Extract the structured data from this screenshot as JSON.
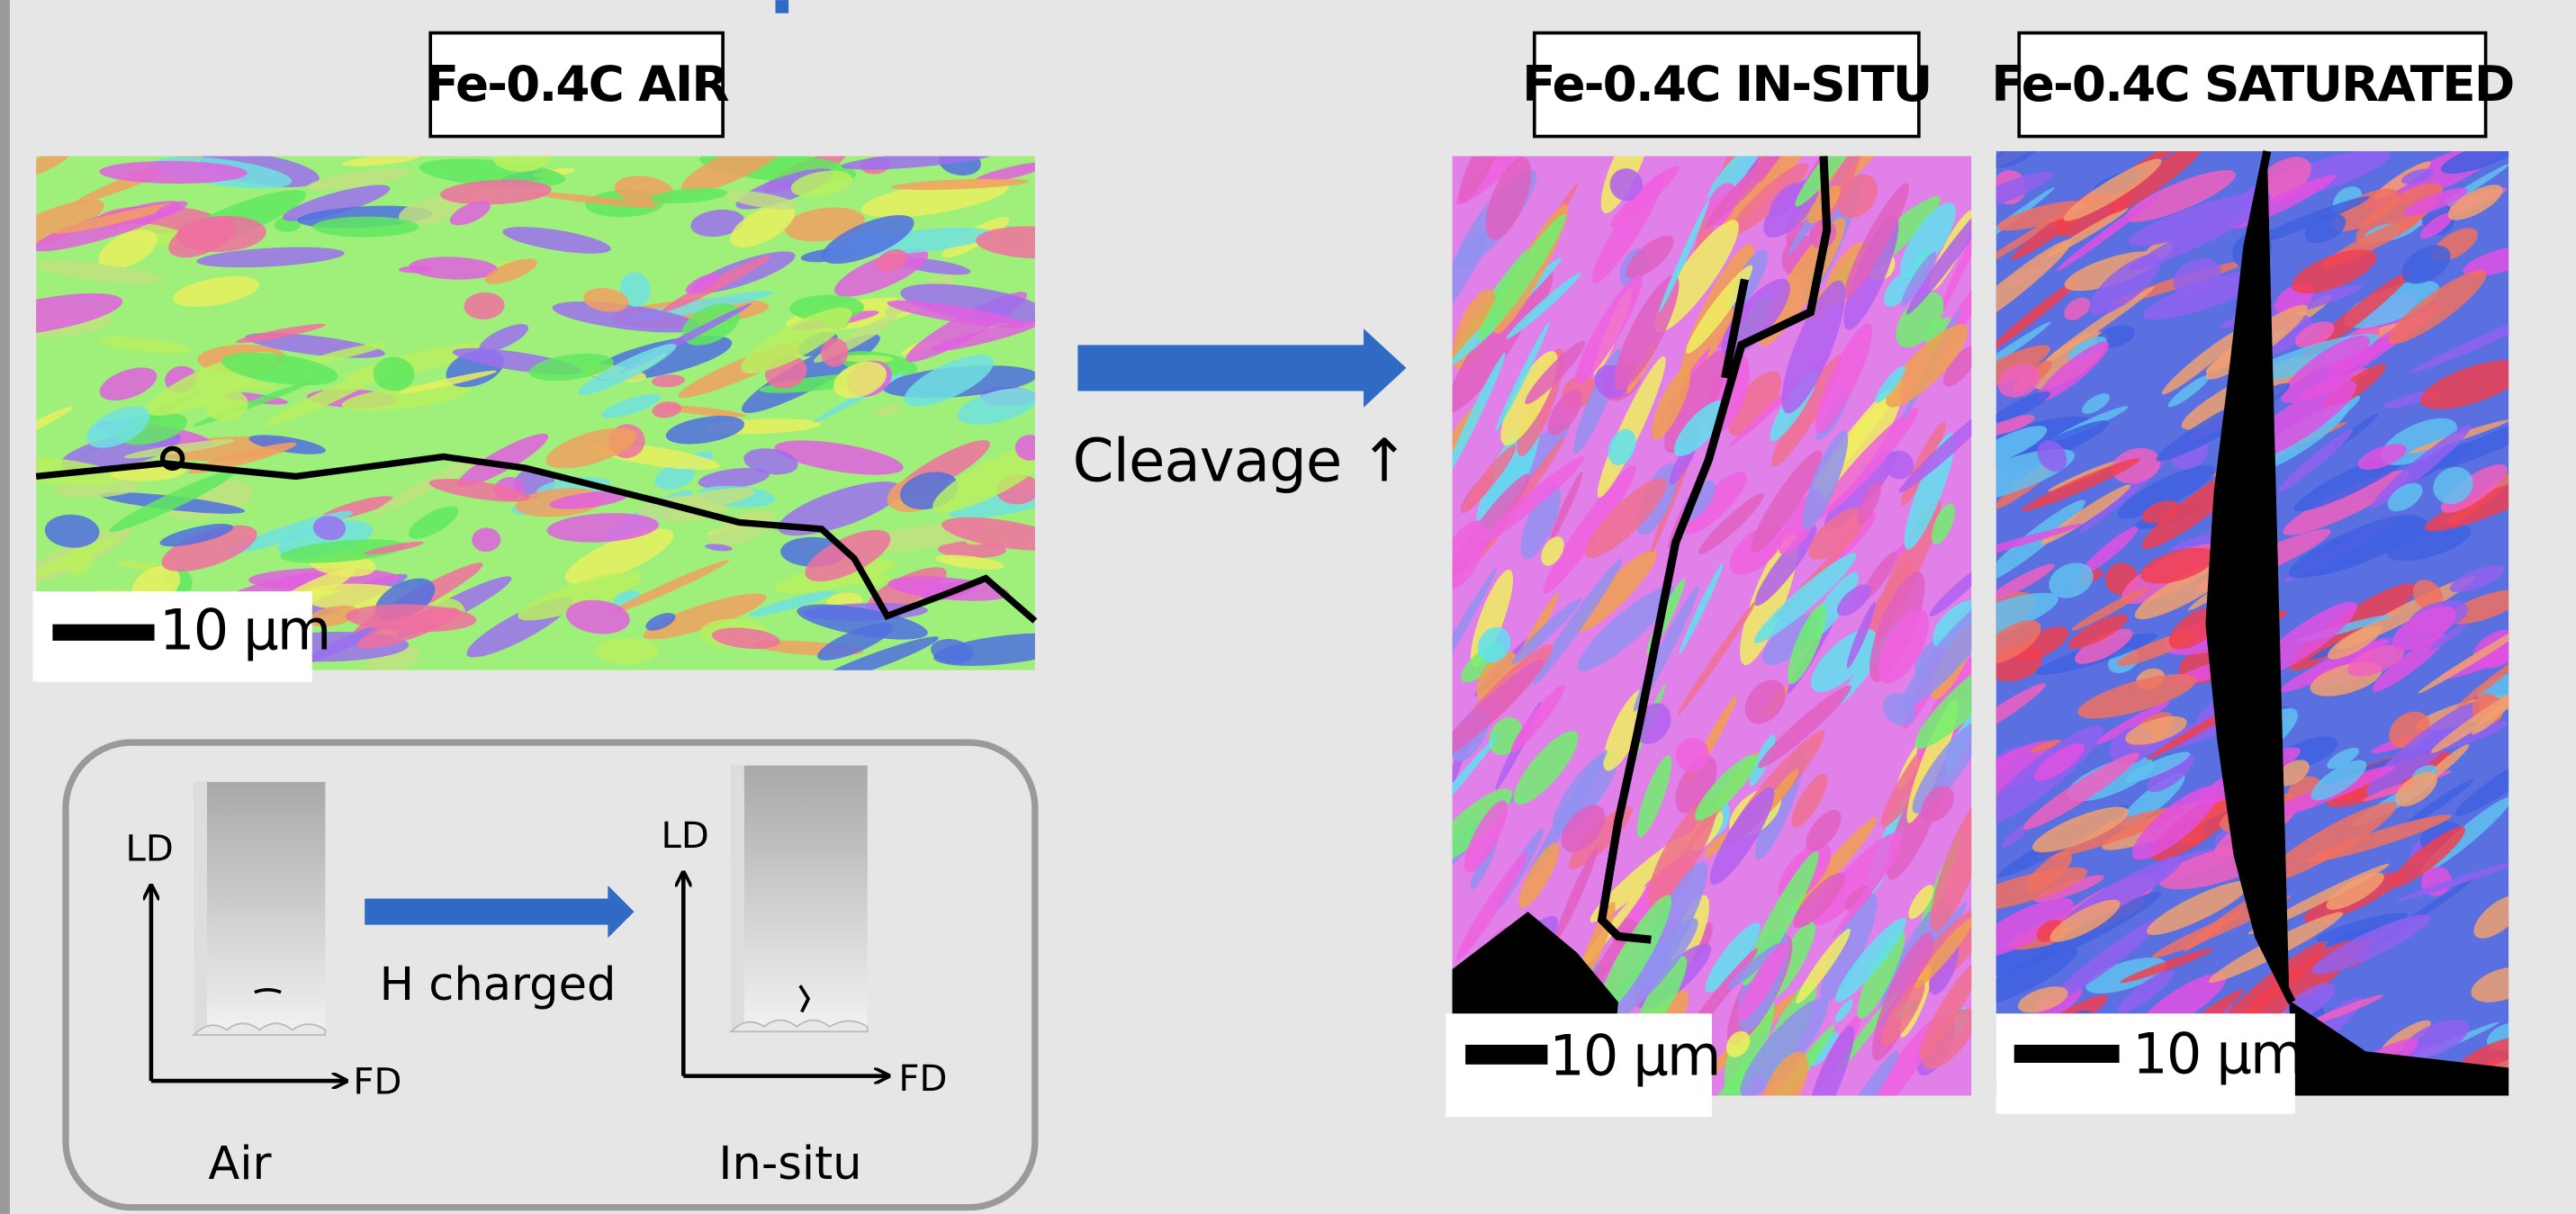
{
  "panels": [
    {
      "title": "Fe-0.4C AIR",
      "scale_bar": "10 μm"
    },
    {
      "title": "Fe-0.4C IN-SITU",
      "scale_bar": "10 μm"
    },
    {
      "title": "Fe-0.4C SATURATED",
      "scale_bar": "10 μm"
    }
  ],
  "arrow_label": "Cleavage ↑",
  "schematic": {
    "left": {
      "y_axis": "LD",
      "x_axis": "FD",
      "caption": "Air"
    },
    "arrow_label": "H charged",
    "right": {
      "y_axis": "LD",
      "x_axis": "FD",
      "caption": "In-situ"
    }
  }
}
